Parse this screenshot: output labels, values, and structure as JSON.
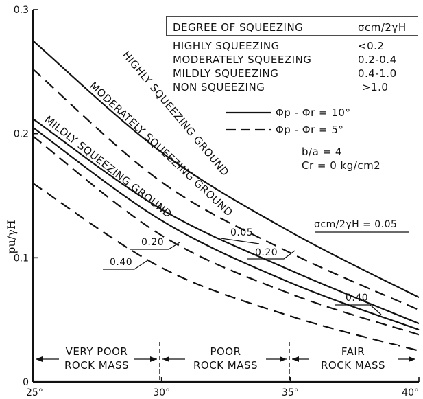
{
  "chart_data": {
    "type": "line",
    "xlim": [
      25,
      40
    ],
    "ylim": [
      0,
      0.3
    ],
    "ylabel": "pu/γH",
    "x_ticks": [
      "25°",
      "30°",
      "35°",
      "40°"
    ],
    "y_ticks": [
      "0",
      "0.1",
      "0.2",
      "0.3"
    ],
    "series": [
      {
        "name": "σcm/2γH = 0.05",
        "style": "solid",
        "x": [
          25,
          30,
          35,
          40
        ],
        "y": [
          0.275,
          0.185,
          0.121,
          0.068
        ]
      },
      {
        "name": "σcm/2γH = 0.05",
        "style": "dashed",
        "x": [
          25,
          30,
          35,
          40
        ],
        "y": [
          0.252,
          0.161,
          0.104,
          0.058
        ]
      },
      {
        "name": "0.20",
        "style": "solid",
        "x": [
          25,
          30,
          35,
          40
        ],
        "y": [
          0.212,
          0.139,
          0.09,
          0.047
        ]
      },
      {
        "name": "0.20",
        "style": "dashed",
        "x": [
          25,
          30,
          35,
          40
        ],
        "y": [
          0.198,
          0.118,
          0.071,
          0.038
        ]
      },
      {
        "name": "0.40",
        "style": "solid",
        "x": [
          25,
          30,
          35,
          40
        ],
        "y": [
          0.205,
          0.13,
          0.08,
          0.042
        ]
      },
      {
        "name": "0.40",
        "style": "dashed",
        "x": [
          25,
          30,
          35,
          40
        ],
        "y": [
          0.16,
          0.092,
          0.053,
          0.025
        ]
      }
    ],
    "curve_labels": [
      "HIGHLY SQUEEZING GROUND",
      "MODERATELY SQUEEZING GROUND",
      "MILDLY SQUEEZING GROUND"
    ],
    "value_labels": [
      "0.05",
      "0.20",
      "0.40",
      "0.20",
      "0.40",
      "σcm/2γH = 0.05"
    ],
    "table": {
      "headers": [
        "DEGREE OF SQUEEZING",
        "σcm/2γH"
      ],
      "rows": [
        [
          "HIGHLY SQUEEZING",
          "<0.2"
        ],
        [
          "MODERATELY SQUEEZING",
          "0.2-0.4"
        ],
        [
          "MILDLY SQUEEZING",
          "0.4-1.0"
        ],
        [
          "NON SQUEEZING",
          ">1.0"
        ]
      ]
    },
    "legend": [
      {
        "style": "solid",
        "text": "Φp - Φr = 10°"
      },
      {
        "style": "dashed",
        "text": "Φp - Φr = 5°"
      }
    ],
    "params": [
      "b/a = 4",
      "Cr = 0 kg/cm2"
    ],
    "zones": [
      {
        "line1": "VERY POOR",
        "line2": "ROCK MASS"
      },
      {
        "line1": "POOR",
        "line2": "ROCK MASS"
      },
      {
        "line1": "FAIR",
        "line2": "ROCK MASS"
      }
    ]
  }
}
